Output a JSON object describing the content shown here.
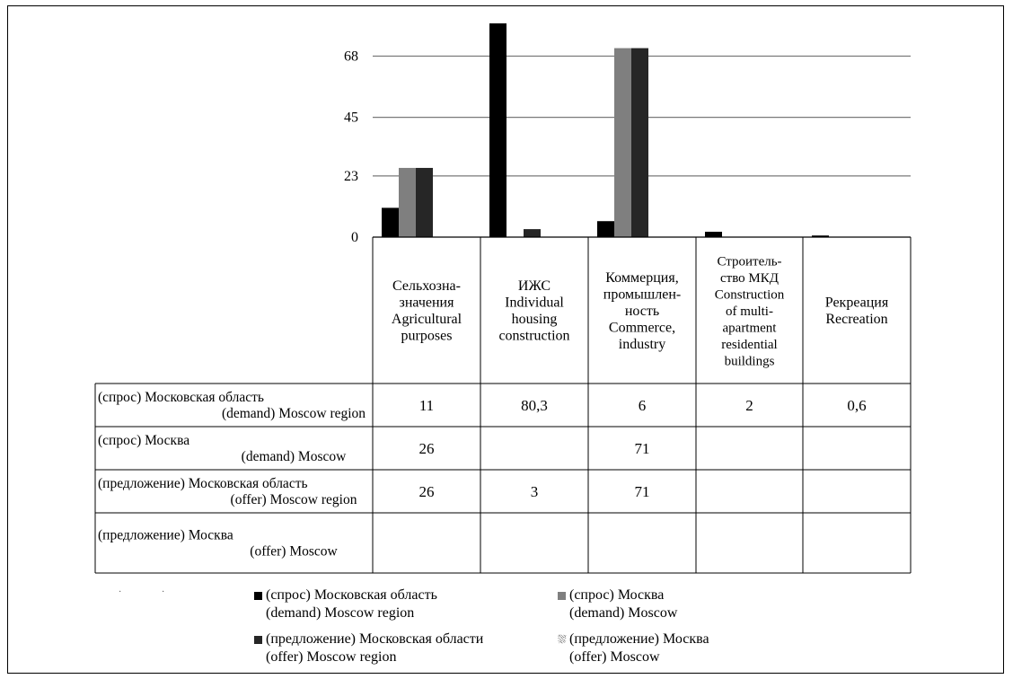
{
  "chart_data": {
    "type": "bar",
    "yticks": [
      "0",
      "23",
      "45",
      "68"
    ],
    "ylim": [
      0,
      82
    ],
    "grid": true,
    "legend_position": "bottom",
    "categories": [
      [
        "Сельхозна-",
        "значения",
        "Agricultural",
        "purposes"
      ],
      [
        "ИЖС",
        "Individual",
        "housing",
        "construction"
      ],
      [
        "Коммерция,",
        "промышлен-",
        "ность",
        "Commerce,",
        "industry"
      ],
      [
        "Строитель-",
        "ство МКД",
        "Construction",
        "of multi-",
        "apartment",
        "residential",
        "buildings"
      ],
      [
        "Рекреация",
        "Recreation"
      ]
    ],
    "series": [
      {
        "name": [
          "(спрос) Московская область",
          "(demand) Moscow region"
        ],
        "legend": [
          "(спрос) Московская область",
          "(demand) Moscow region"
        ],
        "values": [
          11,
          80.3,
          6,
          2,
          0.6
        ],
        "labels": [
          "11",
          "80,3",
          "6",
          "2",
          "0,6"
        ],
        "color": "#000000"
      },
      {
        "name": [
          "(спрос) Москва",
          "(demand) Moscow"
        ],
        "legend": [
          "(спрос) Москва",
          "(demand) Moscow"
        ],
        "values": [
          26,
          null,
          71,
          null,
          null
        ],
        "labels": [
          "26",
          "",
          "71",
          "",
          ""
        ],
        "color": "#7f7f7f"
      },
      {
        "name": [
          "(предложение) Московская область",
          "(offer) Moscow region"
        ],
        "legend": [
          "(предложение) Московская области",
          "(offer) Moscow region"
        ],
        "values": [
          26,
          3,
          71,
          null,
          null
        ],
        "labels": [
          "26",
          "3",
          "71",
          "",
          ""
        ],
        "color": "#262626"
      },
      {
        "name": [
          "(предложение) Москва",
          "(offer) Moscow"
        ],
        "legend": [
          "(предложение) Москва",
          "(offer) Moscow"
        ],
        "values": [
          null,
          null,
          null,
          null,
          null
        ],
        "labels": [
          "",
          "",
          "",
          "",
          ""
        ],
        "color": "#ffffff"
      }
    ]
  }
}
